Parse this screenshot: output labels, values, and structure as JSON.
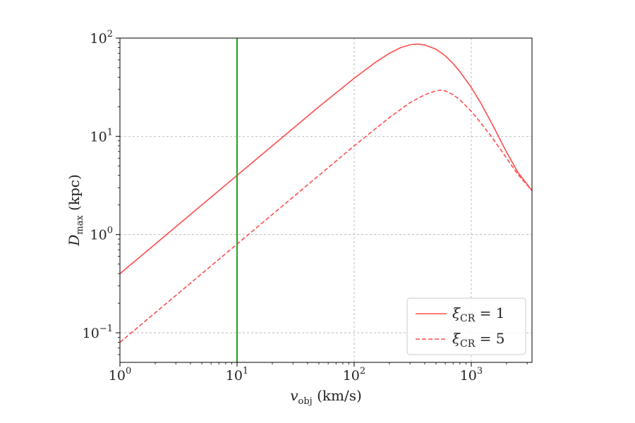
{
  "chart_data": {
    "type": "line",
    "title": "",
    "xlabel": {
      "main": "v",
      "sub": "obj",
      "unit": " (km/s)"
    },
    "ylabel": {
      "main": "D",
      "sub": "max",
      "unit": " (kpc)"
    },
    "x_scale": "log",
    "y_scale": "log",
    "xlim": [
      1,
      3300
    ],
    "ylim": [
      0.05,
      100
    ],
    "x_ticks": [
      {
        "value": 1,
        "base": "10",
        "exp": "0"
      },
      {
        "value": 10,
        "base": "10",
        "exp": "1"
      },
      {
        "value": 100,
        "base": "10",
        "exp": "2"
      },
      {
        "value": 1000,
        "base": "10",
        "exp": "3"
      }
    ],
    "y_ticks": [
      {
        "value": 0.1,
        "base": "10",
        "exp": "−1"
      },
      {
        "value": 1,
        "base": "10",
        "exp": "0"
      },
      {
        "value": 10,
        "base": "10",
        "exp": "1"
      },
      {
        "value": 100,
        "base": "10",
        "exp": "2"
      }
    ],
    "grid": true,
    "legend_position": "bottom-right",
    "vertical_line": {
      "x": 10,
      "color": "#2ca02c"
    },
    "series": [
      {
        "name": "ξCR = 1",
        "legend": {
          "symbol": "ξ",
          "sub": "CR",
          "rest": " = 1"
        },
        "color": "#ff4d4d",
        "dash": "solid",
        "x": [
          1,
          2,
          5,
          10,
          20,
          50,
          100,
          150,
          200,
          250,
          300,
          350,
          400,
          500,
          600,
          700,
          800,
          1000,
          1200,
          1500,
          2000,
          2500,
          3300
        ],
        "y": [
          0.4,
          0.8,
          2.0,
          4.0,
          8.0,
          20.0,
          39.0,
          56.0,
          70.0,
          80.0,
          85.5,
          87.0,
          85.0,
          77.0,
          66.0,
          55.0,
          45.5,
          31.5,
          22.0,
          13.5,
          6.9,
          4.3,
          2.8
        ]
      },
      {
        "name": "ξCR = 5",
        "legend": {
          "symbol": "ξ",
          "sub": "CR",
          "rest": " = 5"
        },
        "color": "#ff4d4d",
        "dash": "dashed",
        "x": [
          1,
          2,
          5,
          10,
          20,
          50,
          100,
          200,
          300,
          400,
          500,
          550,
          600,
          700,
          800,
          1000,
          1200,
          1500,
          2000,
          2500,
          3300
        ],
        "y": [
          0.08,
          0.16,
          0.4,
          0.8,
          1.6,
          4.0,
          8.0,
          15.5,
          22.0,
          26.5,
          29.0,
          29.5,
          29.0,
          26.5,
          23.5,
          18.0,
          13.8,
          9.8,
          6.0,
          4.1,
          2.8
        ]
      }
    ]
  }
}
